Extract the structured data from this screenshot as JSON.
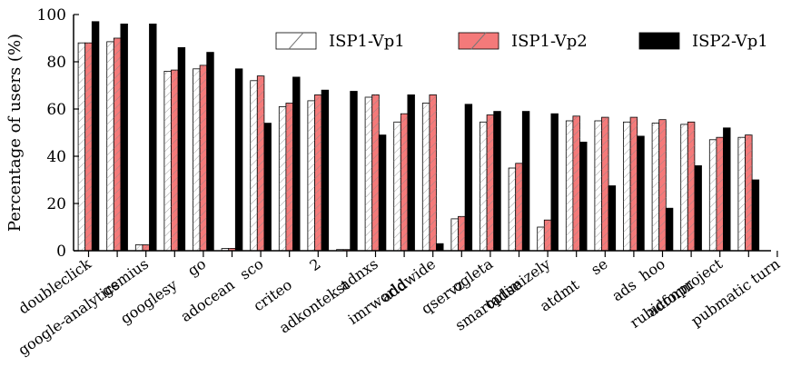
{
  "chart_data": {
    "type": "bar",
    "ylabel": "Percentage of users (%)",
    "ylim": [
      0,
      100
    ],
    "yticks": [
      0,
      20,
      40,
      60,
      80,
      100
    ],
    "grid": false,
    "legend_position": "top-right",
    "categories": [
      "doubleclick",
      "google-analytics",
      "gemius",
      "googlesy",
      "go",
      "adocean",
      "sco",
      "criteo",
      "2",
      "adkontekst",
      "adnxs",
      "add",
      "imrworldwide",
      "qservz",
      "ogleta",
      "smartadse",
      "optimizely",
      "atdmt",
      "se",
      "ads",
      "hoo",
      "adform",
      "rubiconproject",
      "pubmatic",
      "turn"
    ],
    "series": [
      {
        "name": "ISP1-Vp1",
        "color": "#ffffff",
        "pattern": "hatch",
        "values": [
          88,
          88.5,
          2.5,
          76,
          77,
          1,
          72,
          61,
          63.5,
          0.5,
          65,
          54.5,
          62.5,
          13.5,
          54.5,
          35,
          10,
          55,
          55,
          54.5,
          54,
          53.5,
          47,
          48,
          0
        ]
      },
      {
        "name": "ISP1-Vp2",
        "color": "#f47a7a",
        "pattern": "hatch",
        "values": [
          88,
          90,
          2.5,
          76.5,
          78.5,
          1,
          74,
          62.5,
          66,
          0.5,
          66,
          58,
          66,
          14.5,
          57.5,
          37,
          13,
          57,
          56.5,
          56.5,
          55.5,
          54.5,
          48,
          49,
          0
        ]
      },
      {
        "name": "ISP2-Vp1",
        "color": "#000000",
        "pattern": "solid",
        "values": [
          97,
          96,
          96,
          86,
          84,
          77,
          54,
          73.5,
          68,
          67.5,
          49,
          66,
          3,
          62,
          59,
          59,
          58,
          46,
          27.5,
          48.5,
          18,
          36,
          52,
          30,
          0
        ]
      }
    ]
  }
}
